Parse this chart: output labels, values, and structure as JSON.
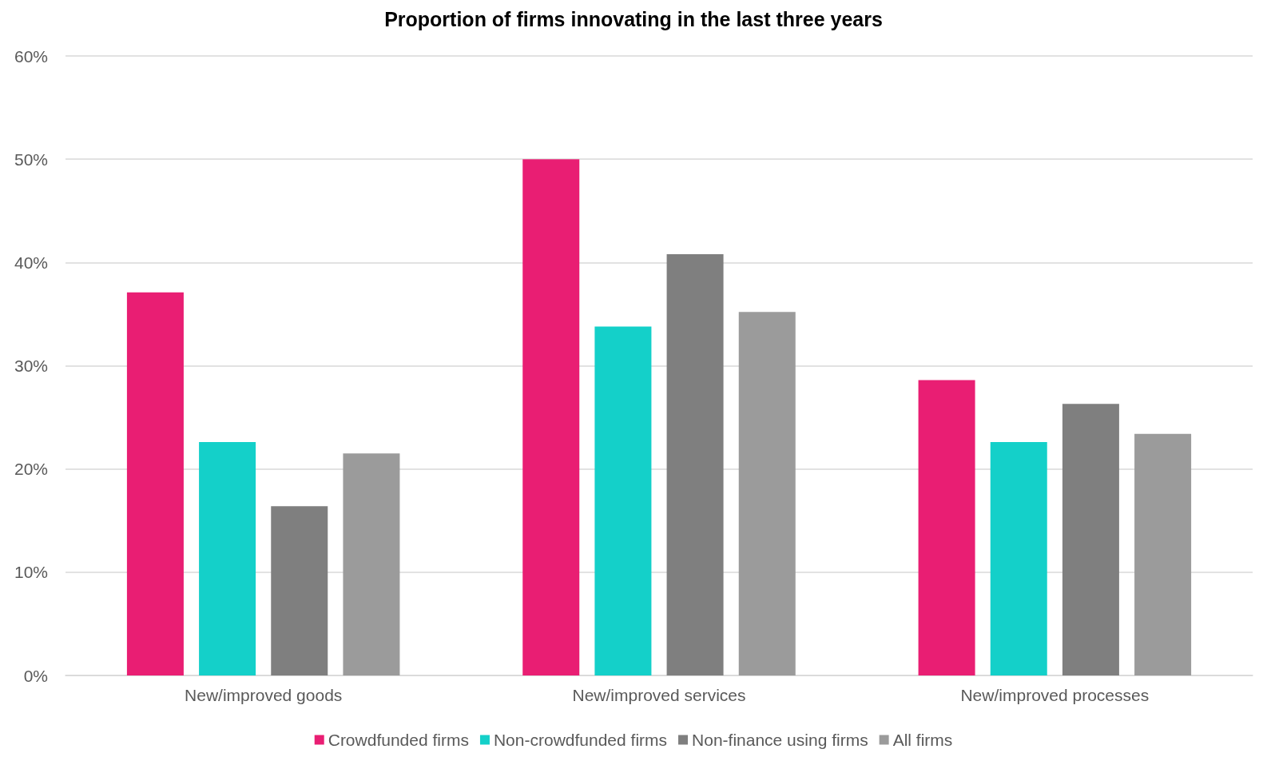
{
  "chart_data": {
    "type": "bar",
    "title": "Proportion of firms innovating in the last three years",
    "categories": [
      "New/improved goods",
      "New/improved services",
      "New/improved processes"
    ],
    "series": [
      {
        "name": "Crowdfunded firms",
        "color": "#e91e73",
        "values": [
          37.1,
          50,
          28.6
        ]
      },
      {
        "name": "Non-crowdfunded firms",
        "color": "#14d0c9",
        "values": [
          22.6,
          33.8,
          22.6
        ]
      },
      {
        "name": "Non-finance using firms",
        "color": "#7f7f7f",
        "values": [
          16.4,
          40.8,
          26.3
        ]
      },
      {
        "name": "All firms",
        "color": "#9b9b9b",
        "values": [
          21.5,
          35.2,
          23.4
        ]
      }
    ],
    "ylim": [
      0,
      60
    ],
    "yticks": [
      {
        "value": 0,
        "label": "0%"
      },
      {
        "value": 10,
        "label": "10%"
      },
      {
        "value": 20,
        "label": "20%"
      },
      {
        "value": 30,
        "label": "30%"
      },
      {
        "value": 40,
        "label": "40%"
      },
      {
        "value": 50,
        "label": "50%"
      },
      {
        "value": 60,
        "label": "60%"
      }
    ],
    "grid": "y",
    "legend": "bottom"
  }
}
